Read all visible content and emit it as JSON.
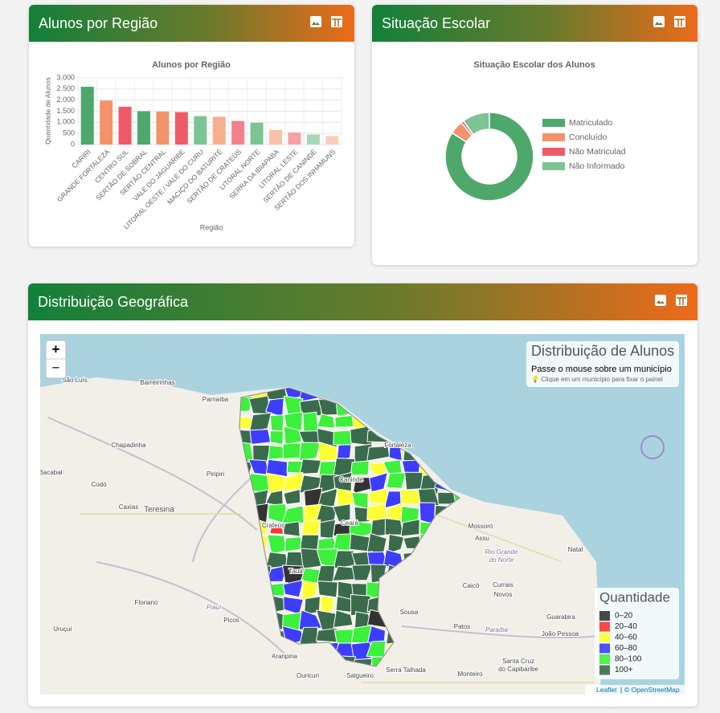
{
  "panels": [
    {
      "title": "Alunos por Região"
    },
    {
      "title": "Situação Escolar"
    },
    {
      "title": "Distribuição Geográfica"
    }
  ],
  "chart_data": [
    {
      "type": "bar",
      "title": "Alunos por Região",
      "x_label": "Região",
      "y_label": "Quantidade de Alunos",
      "categories": [
        "CARIRI",
        "GRANDE FORTALEZA",
        "CENTRO SUL",
        "SERTÃO DE SOBRAL",
        "SERTÃO CENTRAL",
        "VALE DO JAGUARIBE",
        "LITORAL OESTE / VALE DO CURU",
        "MACIÇO DO BATURITÉ",
        "SERTÃO DE CRATEÚS",
        "LITORAL NORTE",
        "SERRA DA IBIAPABA",
        "LITORAL LESTE",
        "SERTÃO DE CANINDÉ",
        "SERTÃO DOS INHAMUNS"
      ],
      "values": [
        2600,
        1980,
        1700,
        1500,
        1480,
        1460,
        1280,
        1250,
        1060,
        980,
        660,
        540,
        450,
        380
      ],
      "colors": [
        "#4ea86b",
        "#f2936a",
        "#ef5a68",
        "#4ea86b",
        "#f2936a",
        "#ef5a68",
        "#7dc495",
        "#f6b08f",
        "#f4808b",
        "#7dc495",
        "#f8c2a8",
        "#f6a0a8",
        "#a8d8b7",
        "#f9cdb8"
      ],
      "ylim": [
        0,
        3000
      ],
      "yticks": [
        0,
        500,
        {
          "value": 1000,
          "label": "1.000"
        },
        {
          "value": 1500,
          "label": "1.500"
        },
        {
          "value": 2000,
          "label": "2.000"
        },
        {
          "value": 2500,
          "label": "2.500"
        },
        {
          "value": 3000,
          "label": "3.000"
        }
      ],
      "grid": true
    },
    {
      "type": "pie",
      "donut": true,
      "title": "Situação Escolar dos Alunos",
      "legend": "right",
      "categories": [
        "Matriculado",
        "Concluído",
        "Não Matriculad",
        "Não Informado"
      ],
      "values": [
        84,
        5,
        1,
        10
      ],
      "colors": [
        "#4ea86b",
        "#f2936a",
        "#ef5a68",
        "#7dc495"
      ]
    }
  ],
  "map": {
    "info": {
      "title": "Distribuição de Alunos",
      "hint": "Passe o mouse sobre um município",
      "tip": "💡 Clique em um município para fixar o painel"
    },
    "legend": {
      "title": "Quantidade",
      "items": [
        {
          "label": "0–20",
          "color": "#333333"
        },
        {
          "label": "20–40",
          "color": "#ff3333"
        },
        {
          "label": "40–60",
          "color": "#ffff33"
        },
        {
          "label": "60–80",
          "color": "#3d3dff"
        },
        {
          "label": "80–100",
          "color": "#3cf03c"
        },
        {
          "label": "100+",
          "color": "#3b6b4d"
        }
      ]
    },
    "zoom": [
      "+",
      "−"
    ],
    "attribution": {
      "leaflet": "Leaflet",
      "separator": "|",
      "osm": "© OpenStreetMap"
    },
    "places": [
      "São Luís",
      "Barreirinhas",
      "Parnaíba",
      "Chapadinha",
      "Piripiri",
      "Bacabal",
      "Codó",
      "Caxias",
      "Teresina",
      "Floriano",
      "Piauí",
      "Picos",
      "Uruçuí",
      "Araripina",
      "Ouricuri",
      "Salgueiro",
      "Serra Talhada",
      "Monteiro",
      "Sousa",
      "Patos",
      "Mossoró",
      "Assu",
      "Natal",
      "Rio Grande",
      "do Norte",
      "Caicó",
      "Currais",
      "Novos",
      "Guarabira",
      "João Pessoa",
      "Paraíba",
      "Santa Cruz",
      "do Capibaribe",
      "Fortaleza",
      "Canindé",
      "Crateús",
      "Ceará",
      "Tauá"
    ]
  }
}
